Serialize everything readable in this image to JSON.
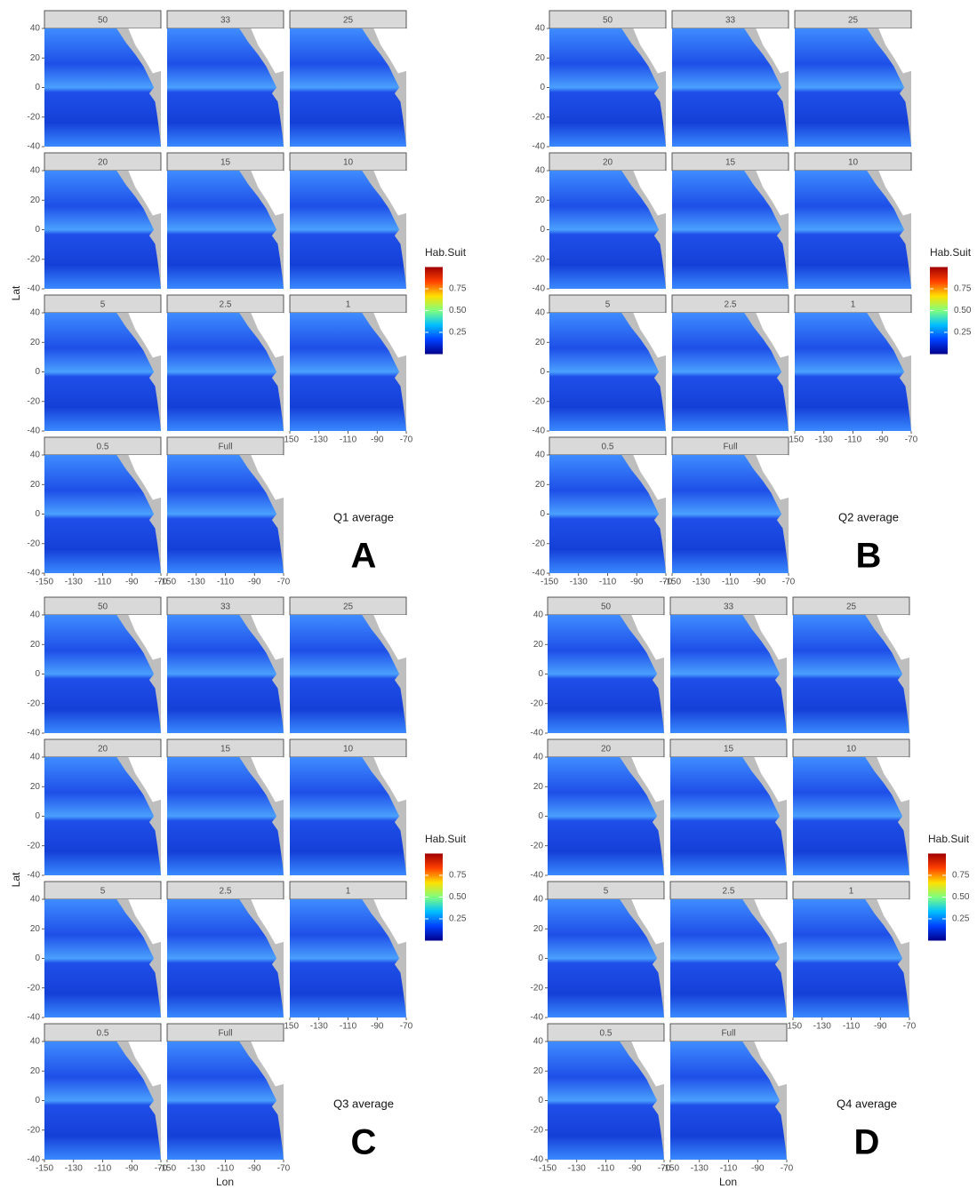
{
  "chart_data": [
    {
      "type": "raster-facets",
      "title": "Q1 average",
      "tag": "A",
      "ylabel": "Lat",
      "facets": [
        "50",
        "33",
        "25",
        "20",
        "15",
        "10",
        "5",
        "2.5",
        "1",
        "0.5",
        "Full"
      ],
      "xlim": [
        -150,
        -70
      ],
      "ylim": [
        -40,
        40
      ],
      "xticks": [
        -150,
        -130,
        -110,
        -90,
        -70
      ],
      "yticks": [
        -40,
        -20,
        0,
        20,
        40
      ],
      "legend_title": "Hab.Suit",
      "colorbar_lim": [
        0,
        1
      ],
      "colorbar_ticks": [
        0.25,
        {
          "value": 0.5,
          "label": "0.50"
        },
        0.75
      ],
      "colors": [
        "#00008b",
        "#0040ff",
        "#00bfff",
        "#7fff7f",
        "#ffdf00",
        "#ff4000",
        "#a00000"
      ]
    },
    {
      "type": "raster-facets",
      "title": "Q2 average",
      "tag": "B",
      "facets": [
        "50",
        "33",
        "25",
        "20",
        "15",
        "10",
        "5",
        "2.5",
        "1",
        "0.5",
        "Full"
      ],
      "xlim": [
        -150,
        -70
      ],
      "ylim": [
        -40,
        40
      ],
      "xticks": [
        -150,
        -130,
        -110,
        -90,
        -70
      ],
      "yticks": [
        -40,
        -20,
        0,
        20,
        40
      ],
      "legend_title": "Hab.Suit",
      "colorbar_lim": [
        0,
        1
      ],
      "colorbar_ticks": [
        0.25,
        {
          "value": 0.5,
          "label": "0.50"
        },
        0.75
      ],
      "colors": [
        "#00008b",
        "#0040ff",
        "#00bfff",
        "#7fff7f",
        "#ffdf00",
        "#ff4000",
        "#a00000"
      ]
    },
    {
      "type": "raster-facets",
      "title": "Q3 average",
      "tag": "C",
      "ylabel": "Lat",
      "xlabel": "Lon",
      "facets": [
        "50",
        "33",
        "25",
        "20",
        "15",
        "10",
        "5",
        "2.5",
        "1",
        "0.5",
        "Full"
      ],
      "xlim": [
        -150,
        -70
      ],
      "ylim": [
        -40,
        40
      ],
      "xticks": [
        -150,
        -130,
        -110,
        -90,
        -70
      ],
      "yticks": [
        -40,
        -20,
        0,
        20,
        40
      ],
      "legend_title": "Hab.Suit",
      "colorbar_lim": [
        0,
        1
      ],
      "colorbar_ticks": [
        0.25,
        {
          "value": 0.5,
          "label": "0.50"
        },
        0.75
      ],
      "colors": [
        "#00008b",
        "#0040ff",
        "#00bfff",
        "#7fff7f",
        "#ffdf00",
        "#ff4000",
        "#a00000"
      ]
    },
    {
      "type": "raster-facets",
      "title": "Q4 average",
      "tag": "D",
      "xlabel": "Lon",
      "facets": [
        "50",
        "33",
        "25",
        "20",
        "15",
        "10",
        "5",
        "2.5",
        "1",
        "0.5",
        "Full"
      ],
      "xlim": [
        -150,
        -70
      ],
      "ylim": [
        -40,
        40
      ],
      "xticks": [
        -150,
        -130,
        -110,
        -90,
        -70
      ],
      "yticks": [
        -40,
        -20,
        0,
        20,
        40
      ],
      "legend_title": "Hab.Suit",
      "colorbar_lim": [
        0,
        1
      ],
      "colorbar_ticks": [
        0.25,
        {
          "value": 0.5,
          "label": "0.50"
        },
        0.75
      ],
      "colors": [
        "#00008b",
        "#0040ff",
        "#00bfff",
        "#7fff7f",
        "#ffdf00",
        "#ff4000",
        "#a00000"
      ]
    }
  ]
}
